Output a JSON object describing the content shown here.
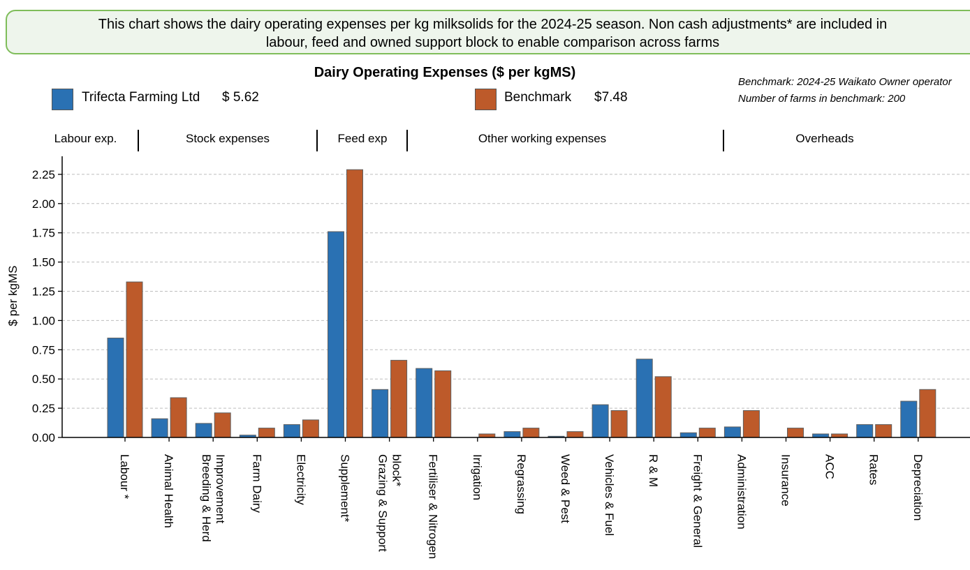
{
  "banner": {
    "line1": "This chart shows the dairy operating expenses per kg milksolids for the 2024-25 season.  Non cash adjustments* are included in",
    "line2": "labour, feed and owned support block to enable comparison across farms"
  },
  "legend": {
    "series1_name": "Trifecta Farming Ltd",
    "series1_total": "$ 5.62",
    "series2_name": "Benchmark",
    "series2_total": "$7.48"
  },
  "benchmark_info": {
    "line1": "Benchmark: 2024-25 Waikato Owner operator",
    "line2": "Number of farms in benchmark: 200"
  },
  "groups": [
    "Labour exp.",
    "Stock expenses",
    "Feed exp",
    "Other working expenses",
    "Overheads"
  ],
  "colors": {
    "trifecta": "#2a71b3",
    "benchmark": "#bd5a2a"
  },
  "chart_data": {
    "type": "bar",
    "title": "Dairy Operating Expenses ($ per kgMS)",
    "ylabel": "$ per kgMS",
    "xlabel": "",
    "ylim": [
      0,
      2.4
    ],
    "yticks": [
      "0.00",
      "0.25",
      "0.50",
      "0.75",
      "1.00",
      "1.25",
      "1.50",
      "1.75",
      "2.00",
      "2.25"
    ],
    "grid": "horizontal dashed",
    "categories": [
      [
        "Labour *"
      ],
      [
        "Animal Health"
      ],
      [
        "Breeding & Herd",
        "Improvement"
      ],
      [
        "Farm Dairy"
      ],
      [
        "Electricity"
      ],
      [
        "Supplement*"
      ],
      [
        "Grazing & Support",
        "block*"
      ],
      [
        "Fertiliser & Nitrogen"
      ],
      [
        "Irrigation"
      ],
      [
        "Regrassing"
      ],
      [
        "Weed & Pest"
      ],
      [
        "Vehicles & Fuel"
      ],
      [
        "R & M"
      ],
      [
        "Freight & General"
      ],
      [
        "Administration"
      ],
      [
        "Insurance"
      ],
      [
        "ACC"
      ],
      [
        "Rates"
      ],
      [
        "Depreciation"
      ]
    ],
    "series": [
      {
        "name": "Trifecta Farming Ltd",
        "values": [
          0.85,
          0.16,
          0.12,
          0.02,
          0.11,
          1.76,
          0.41,
          0.59,
          0.0,
          0.05,
          0.01,
          0.28,
          0.67,
          0.04,
          0.09,
          0.0,
          0.03,
          0.11,
          0.31
        ]
      },
      {
        "name": "Benchmark",
        "values": [
          1.33,
          0.34,
          0.21,
          0.08,
          0.15,
          2.29,
          0.66,
          0.57,
          0.03,
          0.08,
          0.05,
          0.23,
          0.52,
          0.08,
          0.23,
          0.08,
          0.03,
          0.11,
          0.41
        ]
      }
    ]
  }
}
